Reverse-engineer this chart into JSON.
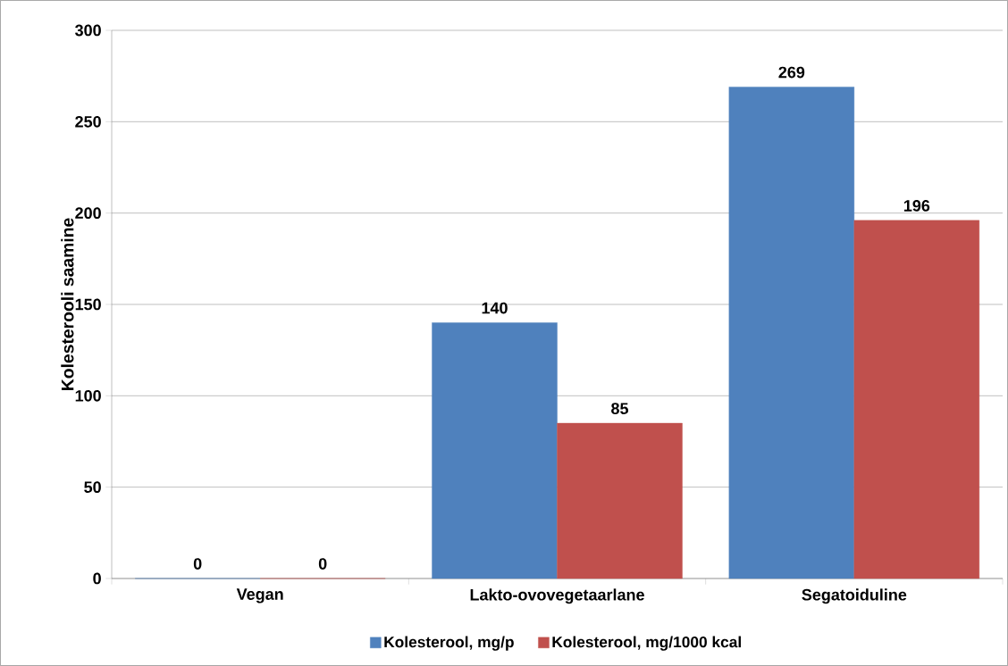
{
  "chart_data": {
    "type": "bar",
    "ylabel": "Kolesterooli saamine",
    "categories": [
      "Vegan",
      "Lakto-ovovegetaarlane",
      "Segatoiduline"
    ],
    "series": [
      {
        "name": "Kolesterool, mg/p",
        "color": "#4f81bd",
        "values": [
          0,
          140,
          269
        ]
      },
      {
        "name": "Kolesterool, mg/1000 kcal",
        "color": "#c0504d",
        "values": [
          0,
          85,
          196
        ]
      }
    ],
    "ylim": [
      0,
      300
    ],
    "yticks": [
      0,
      50,
      100,
      150,
      200,
      250,
      300
    ],
    "grid": "y",
    "legend": "bottom",
    "data_labels": true
  }
}
